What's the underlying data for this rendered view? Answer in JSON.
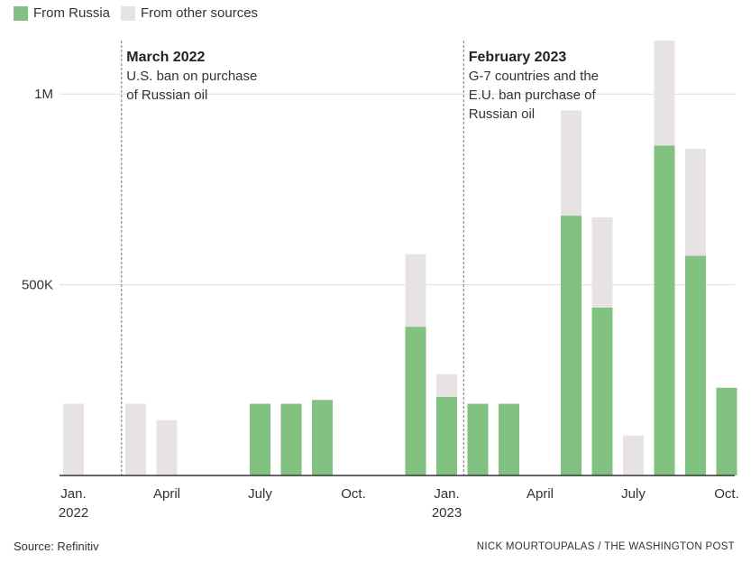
{
  "legend": [
    {
      "label": "From Russia",
      "color": "#82c280"
    },
    {
      "label": "From other sources",
      "color": "#e8e3e3"
    }
  ],
  "annotations": [
    {
      "title": "March 2022",
      "lines": [
        "U.S. ban on purchase",
        "of Russian oil"
      ],
      "month_index": 2
    },
    {
      "title": "February 2023",
      "lines": [
        "G-7 countries and the",
        "E.U. ban purchase of",
        "Russian oil"
      ],
      "month_index": 13
    }
  ],
  "footer": {
    "source": "Source: Refinitiv",
    "credit": "NICK MOURTOUPALAS / THE WASHINGTON POST"
  },
  "chart_data": {
    "type": "bar",
    "stacked": true,
    "y_ticks": [
      {
        "value": 500000,
        "label": "500K"
      },
      {
        "value": 1000000,
        "label": "1M"
      }
    ],
    "ylim": [
      0,
      1140000
    ],
    "x_ticks": [
      {
        "index": 0,
        "lines": [
          "Jan.",
          "2022"
        ]
      },
      {
        "index": 3,
        "lines": [
          "April"
        ]
      },
      {
        "index": 6,
        "lines": [
          "July"
        ]
      },
      {
        "index": 9,
        "lines": [
          "Oct."
        ]
      },
      {
        "index": 12,
        "lines": [
          "Jan.",
          "2023"
        ]
      },
      {
        "index": 15,
        "lines": [
          "April"
        ]
      },
      {
        "index": 18,
        "lines": [
          "July"
        ]
      },
      {
        "index": 21,
        "lines": [
          "Oct."
        ]
      }
    ],
    "categories": [
      "Jan. 2022",
      "Feb. 2022",
      "Mar. 2022",
      "Apr. 2022",
      "May 2022",
      "Jun. 2022",
      "Jul. 2022",
      "Aug. 2022",
      "Sep. 2022",
      "Oct. 2022",
      "Nov. 2022",
      "Dec. 2022",
      "Jan. 2023",
      "Feb. 2023",
      "Mar. 2023",
      "Apr. 2023",
      "May 2023",
      "Jun. 2023",
      "Jul. 2023",
      "Aug. 2023",
      "Sep. 2023",
      "Oct. 2023"
    ],
    "series": [
      {
        "name": "From Russia",
        "color": "#82c280",
        "values": [
          0,
          0,
          0,
          0,
          0,
          0,
          188000,
          188000,
          198000,
          0,
          0,
          390000,
          206000,
          188000,
          188000,
          0,
          681000,
          440000,
          0,
          865000,
          576000,
          230000
        ]
      },
      {
        "name": "From other sources",
        "color": "#e8e3e3",
        "values": [
          188000,
          0,
          188000,
          145000,
          0,
          0,
          0,
          0,
          0,
          0,
          0,
          190000,
          60000,
          0,
          0,
          0,
          276000,
          237000,
          105000,
          275000,
          280000,
          0
        ]
      }
    ],
    "grid": "horizontal"
  }
}
